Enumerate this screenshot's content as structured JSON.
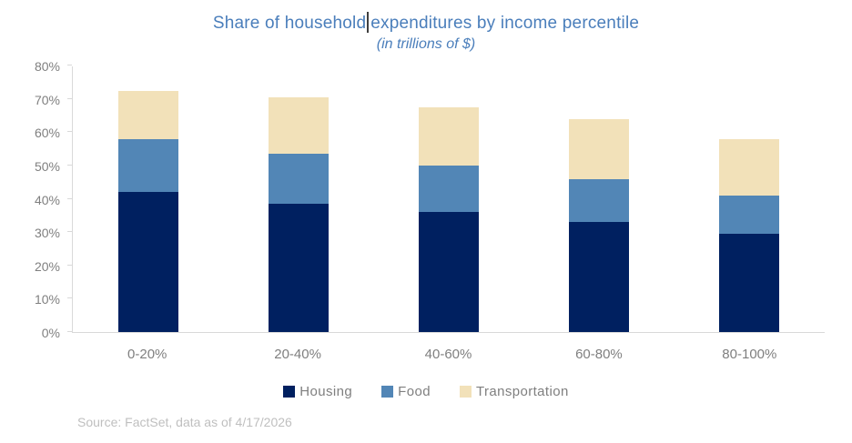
{
  "title": {
    "part1": "Share of household",
    "part2": "expenditures by income percentile",
    "subtitle": "(in trillions of $)",
    "color": "#4A7EBB"
  },
  "source": "Source: FactSet, data as of 4/17/2026",
  "chart_data": {
    "type": "bar",
    "stacked": true,
    "title": "Share of household expenditures by income percentile",
    "subtitle": "(in trillions of $)",
    "categories": [
      "0-20%",
      "20-40%",
      "40-60%",
      "60-80%",
      "80-100%"
    ],
    "series": [
      {
        "name": "Housing",
        "color": "#002060",
        "values": [
          42,
          38.5,
          36,
          33,
          29.5
        ]
      },
      {
        "name": "Food",
        "color": "#5286B6",
        "values": [
          16,
          15,
          14,
          13,
          11.5
        ]
      },
      {
        "name": "Transportation",
        "color": "#F2E1B9",
        "values": [
          14.5,
          17,
          17.5,
          18,
          17
        ]
      }
    ],
    "stack_totals": [
      72.5,
      70.5,
      67.5,
      64,
      58
    ],
    "ylim": [
      0,
      80
    ],
    "y_ticks": [
      "0%",
      "10%",
      "20%",
      "30%",
      "40%",
      "50%",
      "60%",
      "70%",
      "80%"
    ],
    "grid": false,
    "axis_color": "#D9D9D9",
    "label_color": "#7F7F7F",
    "legend_position": "bottom",
    "xlabel": "",
    "ylabel": ""
  }
}
